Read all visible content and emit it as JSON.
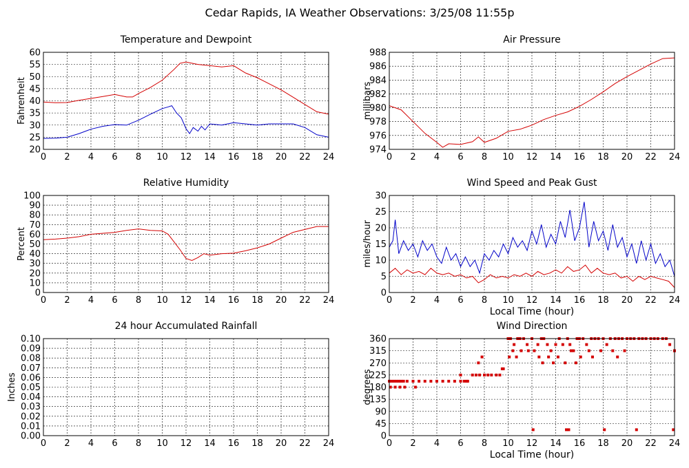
{
  "page": {
    "title": "Cedar Rapids, IA Weather Observations: 3/25/08 11:55p"
  },
  "colors": {
    "red": "#d40000",
    "blue": "#0000c8"
  },
  "chart_data": [
    {
      "id": "temp",
      "type": "line",
      "title": "Temperature and Dewpoint",
      "ylabel": "Fahrenheit",
      "xlabel": "",
      "xlim": [
        0,
        24
      ],
      "ylim": [
        20,
        60
      ],
      "xticks": [
        0,
        2,
        4,
        6,
        8,
        10,
        12,
        14,
        16,
        18,
        20,
        22,
        24
      ],
      "yticks": [
        20,
        25,
        30,
        35,
        40,
        45,
        50,
        55,
        60
      ],
      "grid": true,
      "series": [
        {
          "color": "red",
          "x": [
            0,
            1,
            2,
            3,
            4,
            5,
            6,
            7,
            7.5,
            8,
            9,
            10,
            11,
            11.5,
            12,
            12.5,
            13,
            14,
            15,
            16,
            17,
            18,
            19,
            20,
            21,
            22,
            23,
            24
          ],
          "y": [
            39.5,
            39.2,
            39.3,
            40.2,
            41,
            41.8,
            42.6,
            41.6,
            41.6,
            43,
            45.5,
            48.5,
            53,
            55.5,
            56,
            55.5,
            55,
            54.5,
            54,
            54.5,
            51.5,
            49.5,
            47,
            44.5,
            41.5,
            38.5,
            35.5,
            34.5
          ]
        },
        {
          "color": "blue",
          "x": [
            0,
            1,
            2,
            3,
            4,
            5,
            6,
            7,
            8,
            9,
            10,
            10.5,
            10.8,
            11.2,
            11.6,
            12,
            12.3,
            12.6,
            13,
            13.3,
            13.6,
            14,
            15,
            16,
            17,
            18,
            19,
            20,
            21,
            22,
            23,
            24
          ],
          "y": [
            24.5,
            24.6,
            25,
            26.5,
            28.3,
            29.5,
            30.2,
            30,
            32,
            34.5,
            36.8,
            37.5,
            38,
            35,
            33,
            28.5,
            26.5,
            29,
            27.5,
            29.5,
            28,
            30.5,
            30,
            31,
            30.5,
            30,
            30.5,
            30.5,
            30.5,
            29,
            26,
            25
          ]
        }
      ]
    },
    {
      "id": "pressure",
      "type": "line",
      "title": "Air Pressure",
      "ylabel": "millibars",
      "xlabel": "",
      "xlim": [
        0,
        24
      ],
      "ylim": [
        974,
        988
      ],
      "xticks": [
        0,
        2,
        4,
        6,
        8,
        10,
        12,
        14,
        16,
        18,
        20,
        22,
        24
      ],
      "yticks": [
        974,
        976,
        978,
        980,
        982,
        984,
        986,
        988
      ],
      "grid": true,
      "series": [
        {
          "color": "red",
          "x": [
            0,
            1,
            2,
            3,
            4,
            4.5,
            5,
            6,
            7,
            7.5,
            8,
            9,
            10,
            11,
            12,
            13,
            14,
            15,
            16,
            17,
            18,
            19,
            20,
            21,
            22,
            23,
            24
          ],
          "y": [
            980.3,
            979.7,
            978,
            976.3,
            975,
            974.3,
            974.8,
            974.7,
            975.1,
            975.8,
            975,
            975.6,
            976.6,
            976.9,
            977.5,
            978.3,
            978.9,
            979.4,
            980.2,
            981.2,
            982.3,
            983.5,
            984.5,
            985.4,
            986.3,
            987.1,
            987.2
          ]
        }
      ]
    },
    {
      "id": "humidity",
      "type": "line",
      "title": "Relative Humidity",
      "ylabel": "Percent",
      "xlabel": "",
      "xlim": [
        0,
        24
      ],
      "ylim": [
        0,
        100
      ],
      "xticks": [
        0,
        2,
        4,
        6,
        8,
        10,
        12,
        14,
        16,
        18,
        20,
        22,
        24
      ],
      "yticks": [
        0,
        10,
        20,
        30,
        40,
        50,
        60,
        70,
        80,
        90,
        100
      ],
      "grid": true,
      "series": [
        {
          "color": "red",
          "x": [
            0,
            1,
            2,
            3,
            4,
            5,
            6,
            7,
            8,
            9,
            10,
            10.5,
            11,
            11.5,
            12,
            12.5,
            13,
            13.5,
            14,
            15,
            16,
            17,
            18,
            19,
            20,
            21,
            22,
            23,
            24
          ],
          "y": [
            54.5,
            55,
            56,
            57.5,
            60,
            61,
            62,
            64,
            65.5,
            64,
            63.5,
            60,
            52,
            44,
            35,
            33,
            36,
            40,
            38.5,
            40,
            40.5,
            43,
            46,
            50,
            56,
            62,
            65,
            68,
            68
          ]
        }
      ]
    },
    {
      "id": "wind",
      "type": "line",
      "title": "Wind Speed and Peak Gust",
      "ylabel": "miles/hour",
      "xlabel": "Local Time (hour)",
      "xlim": [
        0,
        24
      ],
      "ylim": [
        0,
        30
      ],
      "xticks": [
        0,
        2,
        4,
        6,
        8,
        10,
        12,
        14,
        16,
        18,
        20,
        22,
        24
      ],
      "yticks": [
        0,
        5,
        10,
        15,
        20,
        25,
        30
      ],
      "grid": true,
      "series": [
        {
          "color": "blue",
          "x": [
            0,
            0.3,
            0.5,
            0.8,
            1.2,
            1.6,
            2,
            2.4,
            2.8,
            3.2,
            3.6,
            4,
            4.4,
            4.8,
            5.2,
            5.6,
            6,
            6.4,
            6.8,
            7.2,
            7.6,
            8,
            8.4,
            8.8,
            9.2,
            9.6,
            10,
            10.4,
            10.8,
            11.2,
            11.6,
            12,
            12.4,
            12.8,
            13.2,
            13.6,
            14,
            14.4,
            14.8,
            15.2,
            15.6,
            16,
            16.4,
            16.8,
            17.2,
            17.6,
            18,
            18.4,
            18.8,
            19.2,
            19.6,
            20,
            20.4,
            20.8,
            21.2,
            21.6,
            22,
            22.4,
            22.8,
            23.2,
            23.6,
            24
          ],
          "y": [
            14,
            16,
            22.5,
            12,
            16,
            13,
            15,
            11,
            16,
            13,
            15,
            11,
            9,
            14,
            10,
            12,
            8,
            11,
            8,
            10,
            6,
            12,
            10,
            13,
            11,
            15,
            12,
            17,
            14,
            16,
            13,
            19,
            15,
            21,
            14,
            18,
            15,
            22,
            17,
            25.5,
            16,
            20,
            28,
            14,
            22,
            16,
            19,
            13,
            21,
            14,
            17,
            11,
            15,
            9,
            16,
            10,
            15,
            9,
            12,
            8,
            10,
            5
          ]
        },
        {
          "color": "red",
          "x": [
            0,
            0.5,
            1,
            1.5,
            2,
            2.5,
            3,
            3.5,
            4,
            4.5,
            5,
            5.5,
            6,
            6.5,
            7,
            7.5,
            8,
            8.5,
            9,
            9.5,
            10,
            10.5,
            11,
            11.5,
            12,
            12.5,
            13,
            13.5,
            14,
            14.5,
            15,
            15.5,
            16,
            16.5,
            17,
            17.5,
            18,
            18.5,
            19,
            19.5,
            20,
            20.5,
            21,
            21.5,
            22,
            22.5,
            23,
            23.5,
            24
          ],
          "y": [
            6,
            7.5,
            5.5,
            7,
            6,
            6.5,
            5.5,
            7.5,
            6,
            5.5,
            6,
            5,
            5.5,
            4.5,
            5,
            3,
            4,
            5.5,
            4.5,
            5,
            4.5,
            5.5,
            5,
            6,
            5,
            6.5,
            5.5,
            6,
            7,
            6,
            8,
            6.5,
            7,
            8.5,
            6,
            7.5,
            6,
            5.5,
            6,
            4.5,
            5,
            3.5,
            5,
            4,
            5,
            4.5,
            4,
            3.5,
            1.5
          ]
        }
      ]
    },
    {
      "id": "rain",
      "type": "line",
      "title": "24 hour Accumulated Rainfall",
      "ylabel": "Inches",
      "xlabel": "",
      "xlim": [
        0,
        24
      ],
      "ylim": [
        0,
        0.1
      ],
      "xticks": [
        0,
        2,
        4,
        6,
        8,
        10,
        12,
        14,
        16,
        18,
        20,
        22,
        24
      ],
      "yticks": [
        0,
        0.01,
        0.02,
        0.03,
        0.04,
        0.05,
        0.06,
        0.07,
        0.08,
        0.09,
        0.1
      ],
      "yformat": 2,
      "grid": true,
      "series": [
        {
          "color": "red",
          "x": [
            0,
            24
          ],
          "y": [
            0,
            0
          ]
        }
      ]
    },
    {
      "id": "direction",
      "type": "scatter",
      "title": "Wind Direction",
      "ylabel": "degrees",
      "xlabel": "Local Time (hour)",
      "xlim": [
        0,
        24
      ],
      "ylim": [
        0,
        360
      ],
      "xticks": [
        0,
        2,
        4,
        6,
        8,
        10,
        12,
        14,
        16,
        18,
        20,
        22,
        24
      ],
      "yticks": [
        0,
        45,
        90,
        135,
        180,
        225,
        270,
        315,
        360
      ],
      "grid": true,
      "series": [
        {
          "color": "red",
          "x": [
            0,
            0.2,
            0.4,
            0.6,
            0.8,
            1,
            1.2,
            1.5,
            2,
            2.5,
            3,
            3.5,
            4,
            4.5,
            5,
            5.5,
            6,
            6.3,
            6.6,
            7,
            7.3,
            7.6,
            8,
            8.3,
            8.6,
            9,
            9.3,
            9.6,
            10,
            10.2,
            10.5,
            10.8,
            11,
            11.3,
            11.6,
            12,
            12.2,
            12.5,
            12.8,
            13,
            13.3,
            13.6,
            14,
            14.3,
            14.6,
            15,
            15.2,
            15.5,
            15.8,
            16,
            16.3,
            16.6,
            17,
            17.3,
            17.6,
            18,
            18.3,
            18.6,
            19,
            19.3,
            19.6,
            20,
            20.3,
            20.6,
            21,
            21.3,
            21.6,
            22,
            22.3,
            22.6,
            23,
            23.3,
            23.6,
            24,
            12.1,
            14.9,
            15.1,
            18.1,
            20.8,
            23.9,
            0.1,
            0.5,
            0.9,
            1.3,
            2.2,
            6.0,
            6.5,
            7.5,
            7.8,
            9.5,
            10.1,
            10.4,
            10.7,
            11.1,
            11.7,
            12.6,
            12.9,
            13.4,
            13.8,
            14.2,
            14.8,
            15.3,
            15.7,
            16.1,
            16.8,
            17.1,
            17.8,
            18.8,
            19.2,
            19.8,
            24.0
          ],
          "y": [
            202,
            202,
            202,
            202,
            202,
            202,
            202,
            202,
            202,
            202,
            202,
            202,
            202,
            202,
            202,
            202,
            202,
            202,
            202,
            225,
            225,
            225,
            225,
            225,
            225,
            225,
            225,
            248,
            360,
            360,
            338,
            360,
            360,
            360,
            338,
            360,
            315,
            338,
            360,
            360,
            338,
            315,
            338,
            360,
            338,
            360,
            338,
            315,
            360,
            360,
            360,
            338,
            360,
            360,
            360,
            360,
            338,
            360,
            360,
            360,
            360,
            360,
            360,
            360,
            360,
            360,
            360,
            360,
            360,
            360,
            360,
            360,
            338,
            315,
            22,
            22,
            22,
            22,
            22,
            22,
            180,
            180,
            180,
            180,
            180,
            225,
            202,
            270,
            292,
            248,
            292,
            315,
            292,
            315,
            315,
            292,
            270,
            292,
            270,
            292,
            270,
            315,
            270,
            292,
            315,
            292,
            315,
            315,
            292,
            315,
            315
          ]
        }
      ]
    }
  ]
}
